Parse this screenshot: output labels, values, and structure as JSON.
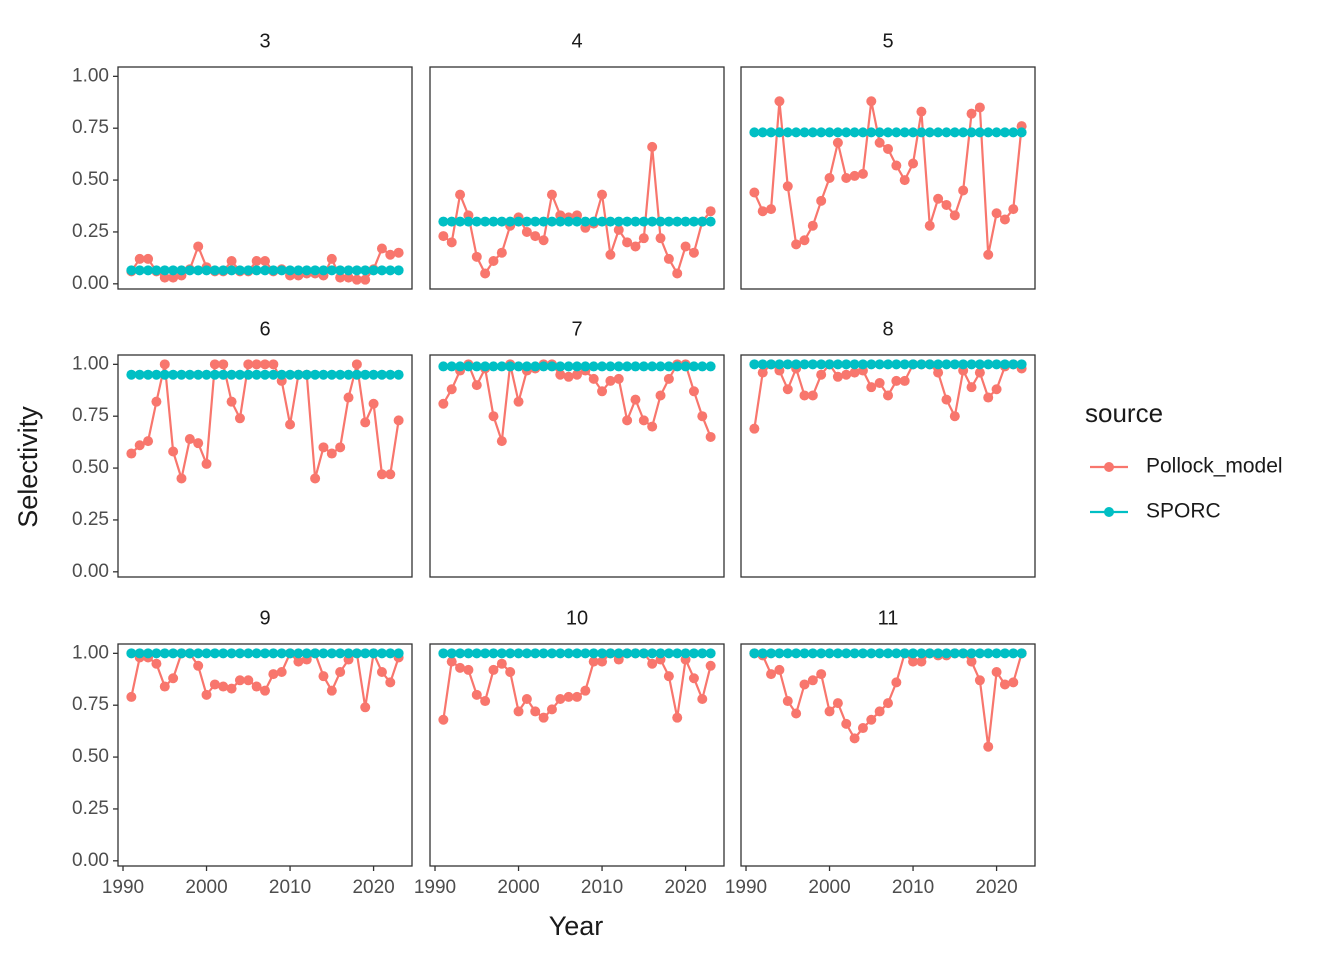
{
  "chart_data": {
    "type": "line",
    "x_label": "Year",
    "y_label": "Selectivity",
    "legend_title": "source",
    "series": [
      {
        "name": "Pollock_model",
        "color": "#F8766D"
      },
      {
        "name": "SPORC",
        "color": "#00BFC4"
      }
    ],
    "x": [
      1991,
      1992,
      1993,
      1994,
      1995,
      1996,
      1997,
      1998,
      1999,
      2000,
      2001,
      2002,
      2003,
      2004,
      2005,
      2006,
      2007,
      2008,
      2009,
      2010,
      2011,
      2012,
      2013,
      2014,
      2015,
      2016,
      2017,
      2018,
      2019,
      2020,
      2021,
      2022,
      2023
    ],
    "xlim": [
      1989.4,
      2024.6
    ],
    "xticks": [
      1990,
      2000,
      2010,
      2020
    ],
    "ylim": [
      -0.025,
      1.045
    ],
    "yticks": [
      {
        "value": 0,
        "label": "0.00"
      },
      {
        "value": 0.25,
        "label": "0.25"
      },
      {
        "value": 0.5,
        "label": "0.50"
      },
      {
        "value": 0.75,
        "label": "0.75"
      },
      {
        "value": 1,
        "label": "1.00"
      }
    ],
    "grid": false,
    "panels": [
      {
        "title": "3",
        "series": [
          {
            "values": [
              0.06,
              0.12,
              0.12,
              0.06,
              0.03,
              0.03,
              0.04,
              0.07,
              0.18,
              0.08,
              0.06,
              0.06,
              0.11,
              0.06,
              0.06,
              0.11,
              0.11,
              0.06,
              0.07,
              0.04,
              0.04,
              0.05,
              0.05,
              0.04,
              0.12,
              0.03,
              0.03,
              0.02,
              0.02,
              0.07,
              0.17,
              0.14,
              0.15
            ]
          },
          {
            "values": [
              0.065,
              0.065,
              0.065,
              0.065,
              0.065,
              0.065,
              0.065,
              0.065,
              0.065,
              0.065,
              0.065,
              0.065,
              0.065,
              0.065,
              0.065,
              0.065,
              0.065,
              0.065,
              0.065,
              0.065,
              0.065,
              0.065,
              0.065,
              0.065,
              0.065,
              0.065,
              0.065,
              0.065,
              0.065,
              0.065,
              0.065,
              0.065,
              0.065
            ]
          }
        ]
      },
      {
        "title": "4",
        "series": [
          {
            "values": [
              0.23,
              0.2,
              0.43,
              0.33,
              0.13,
              0.05,
              0.11,
              0.15,
              0.28,
              0.32,
              0.25,
              0.23,
              0.21,
              0.43,
              0.33,
              0.32,
              0.33,
              0.27,
              0.29,
              0.43,
              0.14,
              0.26,
              0.2,
              0.18,
              0.22,
              0.66,
              0.22,
              0.12,
              0.05,
              0.18,
              0.15,
              0.3,
              0.35
            ]
          },
          {
            "values": [
              0.3,
              0.3,
              0.3,
              0.3,
              0.3,
              0.3,
              0.3,
              0.3,
              0.3,
              0.3,
              0.3,
              0.3,
              0.3,
              0.3,
              0.3,
              0.3,
              0.3,
              0.3,
              0.3,
              0.3,
              0.3,
              0.3,
              0.3,
              0.3,
              0.3,
              0.3,
              0.3,
              0.3,
              0.3,
              0.3,
              0.3,
              0.3,
              0.3
            ]
          }
        ]
      },
      {
        "title": "5",
        "series": [
          {
            "values": [
              0.44,
              0.35,
              0.36,
              0.88,
              0.47,
              0.19,
              0.21,
              0.28,
              0.4,
              0.51,
              0.68,
              0.51,
              0.52,
              0.53,
              0.88,
              0.68,
              0.65,
              0.57,
              0.5,
              0.58,
              0.83,
              0.28,
              0.41,
              0.38,
              0.33,
              0.45,
              0.82,
              0.85,
              0.14,
              0.34,
              0.31,
              0.36,
              0.76
            ]
          },
          {
            "values": [
              0.73,
              0.73,
              0.73,
              0.73,
              0.73,
              0.73,
              0.73,
              0.73,
              0.73,
              0.73,
              0.73,
              0.73,
              0.73,
              0.73,
              0.73,
              0.73,
              0.73,
              0.73,
              0.73,
              0.73,
              0.73,
              0.73,
              0.73,
              0.73,
              0.73,
              0.73,
              0.73,
              0.73,
              0.73,
              0.73,
              0.73,
              0.73,
              0.73
            ]
          }
        ]
      },
      {
        "title": "6",
        "series": [
          {
            "values": [
              0.57,
              0.61,
              0.63,
              0.82,
              1.0,
              0.58,
              0.45,
              0.64,
              0.62,
              0.52,
              1.0,
              1.0,
              0.82,
              0.74,
              1.0,
              1.0,
              1.0,
              1.0,
              0.92,
              0.71,
              0.95,
              0.95,
              0.45,
              0.6,
              0.57,
              0.6,
              0.84,
              1.0,
              0.72,
              0.81,
              0.47,
              0.47,
              0.73
            ]
          },
          {
            "values": [
              0.95,
              0.95,
              0.95,
              0.95,
              0.95,
              0.95,
              0.95,
              0.95,
              0.95,
              0.95,
              0.95,
              0.95,
              0.95,
              0.95,
              0.95,
              0.95,
              0.95,
              0.95,
              0.95,
              0.95,
              0.95,
              0.95,
              0.95,
              0.95,
              0.95,
              0.95,
              0.95,
              0.95,
              0.95,
              0.95,
              0.95,
              0.95,
              0.95
            ]
          }
        ]
      },
      {
        "title": "7",
        "series": [
          {
            "values": [
              0.81,
              0.88,
              0.97,
              1.0,
              0.9,
              0.98,
              0.75,
              0.63,
              1.0,
              0.82,
              0.97,
              0.98,
              1.0,
              1.0,
              0.95,
              0.94,
              0.95,
              0.97,
              0.93,
              0.87,
              0.92,
              0.93,
              0.73,
              0.83,
              0.73,
              0.7,
              0.85,
              0.93,
              1.0,
              1.0,
              0.87,
              0.75,
              0.65
            ]
          },
          {
            "values": [
              0.99,
              0.99,
              0.99,
              0.99,
              0.99,
              0.99,
              0.99,
              0.99,
              0.99,
              0.99,
              0.99,
              0.99,
              0.99,
              0.99,
              0.99,
              0.99,
              0.99,
              0.99,
              0.99,
              0.99,
              0.99,
              0.99,
              0.99,
              0.99,
              0.99,
              0.99,
              0.99,
              0.99,
              0.99,
              0.99,
              0.99,
              0.99,
              0.99
            ]
          }
        ]
      },
      {
        "title": "8",
        "series": [
          {
            "values": [
              0.69,
              0.96,
              1.0,
              0.97,
              0.88,
              0.98,
              0.85,
              0.85,
              0.95,
              1.0,
              0.94,
              0.95,
              0.96,
              0.97,
              0.89,
              0.91,
              0.85,
              0.92,
              0.92,
              1.0,
              1.0,
              1.0,
              0.96,
              0.83,
              0.75,
              0.97,
              0.89,
              0.96,
              0.84,
              0.88,
              0.99,
              1.0,
              0.98
            ]
          },
          {
            "values": [
              1.0,
              1.0,
              1.0,
              1.0,
              1.0,
              1.0,
              1.0,
              1.0,
              1.0,
              1.0,
              1.0,
              1.0,
              1.0,
              1.0,
              1.0,
              1.0,
              1.0,
              1.0,
              1.0,
              1.0,
              1.0,
              1.0,
              1.0,
              1.0,
              1.0,
              1.0,
              1.0,
              1.0,
              1.0,
              1.0,
              1.0,
              1.0,
              1.0
            ]
          }
        ]
      },
      {
        "title": "9",
        "series": [
          {
            "values": [
              0.79,
              0.98,
              0.98,
              0.95,
              0.84,
              0.88,
              1.0,
              1.0,
              0.94,
              0.8,
              0.85,
              0.84,
              0.83,
              0.87,
              0.87,
              0.84,
              0.82,
              0.9,
              0.91,
              1.0,
              0.96,
              0.97,
              1.0,
              0.89,
              0.82,
              0.91,
              0.97,
              1.0,
              0.74,
              1.0,
              0.91,
              0.86,
              0.98
            ]
          },
          {
            "values": [
              1.0,
              1.0,
              1.0,
              1.0,
              1.0,
              1.0,
              1.0,
              1.0,
              1.0,
              1.0,
              1.0,
              1.0,
              1.0,
              1.0,
              1.0,
              1.0,
              1.0,
              1.0,
              1.0,
              1.0,
              1.0,
              1.0,
              1.0,
              1.0,
              1.0,
              1.0,
              1.0,
              1.0,
              1.0,
              1.0,
              1.0,
              1.0,
              1.0
            ]
          }
        ]
      },
      {
        "title": "10",
        "series": [
          {
            "values": [
              0.68,
              0.96,
              0.93,
              0.92,
              0.8,
              0.77,
              0.92,
              0.95,
              0.91,
              0.72,
              0.78,
              0.72,
              0.69,
              0.73,
              0.78,
              0.79,
              0.79,
              0.82,
              0.96,
              0.96,
              1.0,
              0.97,
              1.0,
              1.0,
              1.0,
              0.95,
              0.97,
              0.89,
              0.69,
              0.97,
              0.88,
              0.78,
              0.94
            ]
          },
          {
            "values": [
              1.0,
              1.0,
              1.0,
              1.0,
              1.0,
              1.0,
              1.0,
              1.0,
              1.0,
              1.0,
              1.0,
              1.0,
              1.0,
              1.0,
              1.0,
              1.0,
              1.0,
              1.0,
              1.0,
              1.0,
              1.0,
              1.0,
              1.0,
              1.0,
              1.0,
              1.0,
              1.0,
              1.0,
              1.0,
              1.0,
              1.0,
              1.0,
              1.0
            ]
          }
        ]
      },
      {
        "title": "11",
        "series": [
          {
            "values": [
              1.0,
              0.99,
              0.9,
              0.92,
              0.77,
              0.71,
              0.85,
              0.87,
              0.9,
              0.72,
              0.76,
              0.66,
              0.59,
              0.64,
              0.68,
              0.72,
              0.76,
              0.86,
              1.0,
              0.96,
              0.96,
              1.0,
              0.99,
              0.99,
              1.0,
              1.0,
              0.96,
              0.87,
              0.55,
              0.91,
              0.85,
              0.86,
              1.0
            ]
          },
          {
            "values": [
              1.0,
              1.0,
              1.0,
              1.0,
              1.0,
              1.0,
              1.0,
              1.0,
              1.0,
              1.0,
              1.0,
              1.0,
              1.0,
              1.0,
              1.0,
              1.0,
              1.0,
              1.0,
              1.0,
              1.0,
              1.0,
              1.0,
              1.0,
              1.0,
              1.0,
              1.0,
              1.0,
              1.0,
              1.0,
              1.0,
              1.0,
              1.0,
              1.0
            ]
          }
        ]
      }
    ]
  }
}
